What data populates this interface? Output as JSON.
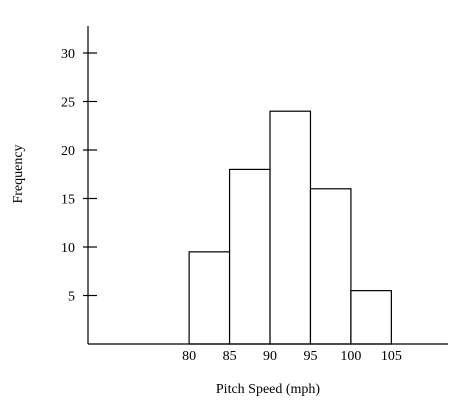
{
  "chart_data": {
    "type": "bar",
    "subtype": "histogram",
    "bins": [
      {
        "start": 80,
        "end": 85,
        "value": 9.5
      },
      {
        "start": 85,
        "end": 90,
        "value": 18
      },
      {
        "start": 90,
        "end": 95,
        "value": 24
      },
      {
        "start": 95,
        "end": 100,
        "value": 16
      },
      {
        "start": 100,
        "end": 105,
        "value": 5.5
      }
    ],
    "x_ticks": [
      "80",
      "85",
      "90",
      "95",
      "100",
      "105"
    ],
    "y_ticks": [
      "5",
      "10",
      "15",
      "20",
      "25",
      "30"
    ],
    "xlabel": "Pitch Speed (mph)",
    "ylabel": "Frequency",
    "xlim": [
      67.5,
      112
    ],
    "ylim": [
      0,
      30
    ],
    "grid": false,
    "legend": "none",
    "colors": {
      "bar_fill": "#ffffff",
      "bar_stroke": "#000000",
      "axis": "#000000"
    }
  }
}
